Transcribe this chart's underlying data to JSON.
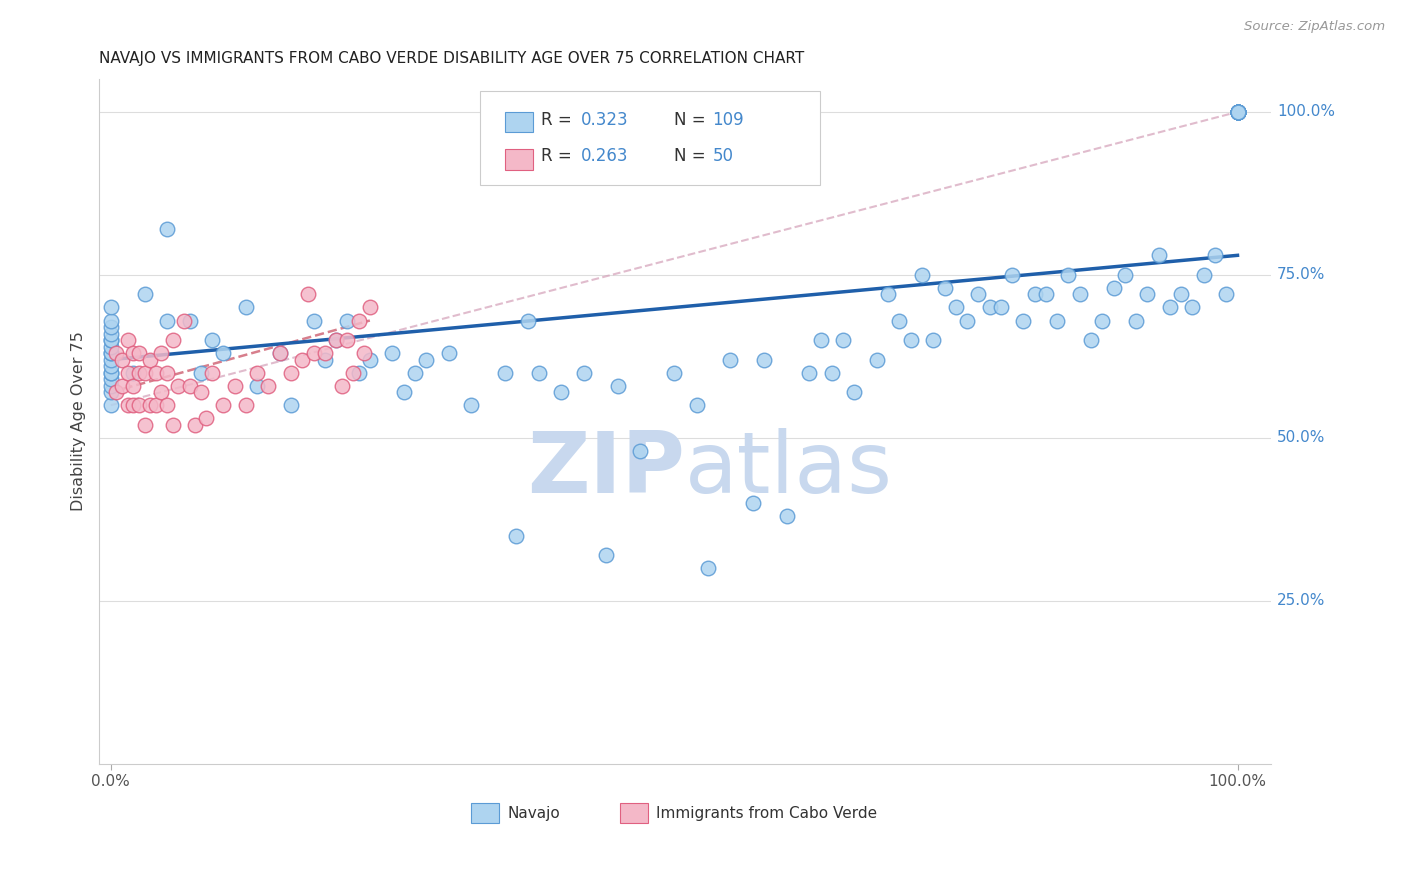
{
  "title": "NAVAJO VS IMMIGRANTS FROM CABO VERDE DISABILITY AGE OVER 75 CORRELATION CHART",
  "source": "Source: ZipAtlas.com",
  "ylabel": "Disability Age Over 75",
  "navajo_R": 0.323,
  "navajo_N": 109,
  "caboverde_R": 0.263,
  "caboverde_N": 50,
  "navajo_color": "#aed4f0",
  "navajo_edge_color": "#5b9bd5",
  "caboverde_color": "#f4b8c8",
  "caboverde_edge_color": "#e06080",
  "navajo_line_color": "#1f5faa",
  "caboverde_line_color": "#d06878",
  "navajo_dash_color": "#d4a0b8",
  "ytick_color": "#4488cc",
  "grid_color": "#dddddd",
  "background_color": "#ffffff",
  "watermark_zip_color": "#c8d8ee",
  "watermark_atlas_color": "#c8d8ee",
  "navajo_x": [
    0.0,
    0.0,
    0.0,
    0.0,
    0.0,
    0.0,
    0.0,
    0.0,
    0.0,
    0.0,
    0.0,
    0.0,
    0.0,
    0.0,
    0.0,
    0.0,
    0.0,
    2.0,
    3.0,
    5.0,
    5.0,
    7.0,
    8.0,
    9.0,
    10.0,
    12.0,
    13.0,
    15.0,
    16.0,
    18.0,
    19.0,
    20.0,
    21.0,
    22.0,
    23.0,
    25.0,
    26.0,
    27.0,
    28.0,
    30.0,
    32.0,
    35.0,
    36.0,
    37.0,
    38.0,
    40.0,
    42.0,
    44.0,
    45.0,
    47.0,
    50.0,
    52.0,
    53.0,
    55.0,
    57.0,
    58.0,
    60.0,
    62.0,
    63.0,
    64.0,
    65.0,
    66.0,
    68.0,
    69.0,
    70.0,
    71.0,
    72.0,
    73.0,
    74.0,
    75.0,
    76.0,
    77.0,
    78.0,
    79.0,
    80.0,
    81.0,
    82.0,
    83.0,
    84.0,
    85.0,
    86.0,
    87.0,
    88.0,
    89.0,
    90.0,
    91.0,
    92.0,
    93.0,
    94.0,
    95.0,
    96.0,
    97.0,
    98.0,
    99.0,
    100.0,
    100.0,
    100.0,
    100.0,
    100.0,
    100.0,
    100.0,
    100.0,
    100.0,
    100.0,
    100.0,
    100.0,
    100.0,
    100.0,
    100.0
  ],
  "navajo_y": [
    55.0,
    57.0,
    58.0,
    59.0,
    60.0,
    60.0,
    61.0,
    62.0,
    63.0,
    63.0,
    64.0,
    65.0,
    65.0,
    66.0,
    67.0,
    68.0,
    70.0,
    60.0,
    72.0,
    82.0,
    68.0,
    68.0,
    60.0,
    65.0,
    63.0,
    70.0,
    58.0,
    63.0,
    55.0,
    68.0,
    62.0,
    65.0,
    68.0,
    60.0,
    62.0,
    63.0,
    57.0,
    60.0,
    62.0,
    63.0,
    55.0,
    60.0,
    35.0,
    68.0,
    60.0,
    57.0,
    60.0,
    32.0,
    58.0,
    48.0,
    60.0,
    55.0,
    30.0,
    62.0,
    40.0,
    62.0,
    38.0,
    60.0,
    65.0,
    60.0,
    65.0,
    57.0,
    62.0,
    72.0,
    68.0,
    65.0,
    75.0,
    65.0,
    73.0,
    70.0,
    68.0,
    72.0,
    70.0,
    70.0,
    75.0,
    68.0,
    72.0,
    72.0,
    68.0,
    75.0,
    72.0,
    65.0,
    68.0,
    73.0,
    75.0,
    68.0,
    72.0,
    78.0,
    70.0,
    72.0,
    70.0,
    75.0,
    78.0,
    72.0,
    100.0,
    100.0,
    100.0,
    100.0,
    100.0,
    100.0,
    100.0,
    100.0,
    100.0,
    100.0,
    100.0,
    100.0,
    100.0,
    100.0,
    100.0
  ],
  "caboverde_x": [
    0.5,
    0.5,
    1.0,
    1.0,
    1.5,
    1.5,
    1.5,
    2.0,
    2.0,
    2.0,
    2.5,
    2.5,
    2.5,
    3.0,
    3.0,
    3.5,
    3.5,
    4.0,
    4.0,
    4.5,
    4.5,
    5.0,
    5.0,
    5.5,
    5.5,
    6.0,
    6.5,
    7.0,
    7.5,
    8.0,
    8.5,
    9.0,
    10.0,
    11.0,
    12.0,
    13.0,
    14.0,
    15.0,
    16.0,
    17.0,
    17.5,
    18.0,
    19.0,
    20.0,
    20.5,
    21.0,
    21.5,
    22.0,
    22.5,
    23.0
  ],
  "caboverde_y": [
    57.0,
    63.0,
    58.0,
    62.0,
    55.0,
    60.0,
    65.0,
    55.0,
    58.0,
    63.0,
    55.0,
    60.0,
    63.0,
    52.0,
    60.0,
    55.0,
    62.0,
    55.0,
    60.0,
    57.0,
    63.0,
    55.0,
    60.0,
    52.0,
    65.0,
    58.0,
    68.0,
    58.0,
    52.0,
    57.0,
    53.0,
    60.0,
    55.0,
    58.0,
    55.0,
    60.0,
    58.0,
    63.0,
    60.0,
    62.0,
    72.0,
    63.0,
    63.0,
    65.0,
    58.0,
    65.0,
    60.0,
    68.0,
    63.0,
    70.0
  ],
  "nav_trend_x0": 0.0,
  "nav_trend_y0": 62.0,
  "nav_trend_x1": 100.0,
  "nav_trend_y1": 78.0,
  "nav_dash_x0": 0.0,
  "nav_dash_y0": 55.0,
  "nav_dash_x1": 100.0,
  "nav_dash_y1": 100.0,
  "cv_trend_x0": 0.0,
  "cv_trend_y0": 57.0,
  "cv_trend_x1": 23.0,
  "cv_trend_y1": 68.0,
  "ylim_min": 0.0,
  "ylim_max": 105.0,
  "xlim_min": -1.0,
  "xlim_max": 103.0
}
